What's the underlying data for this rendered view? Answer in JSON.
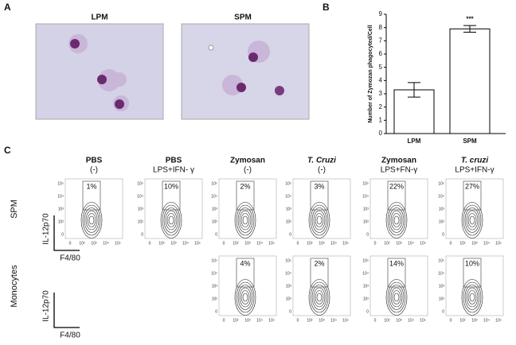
{
  "panel_a": {
    "label": "A",
    "images": [
      {
        "title": "LPM"
      },
      {
        "title": "SPM"
      }
    ]
  },
  "chart_data": {
    "type": "bar",
    "label": "B",
    "ylabel": "Number of Zymozan phagocyted/Cell",
    "categories": [
      "LPM",
      "SPM"
    ],
    "values": [
      3.3,
      7.9
    ],
    "errors": [
      0.55,
      0.25
    ],
    "value_labels": [
      null,
      "***"
    ],
    "color": "#ffffff",
    "ylim": [
      0,
      9
    ],
    "yticks": [
      0,
      1,
      2,
      3,
      4,
      5,
      6,
      7,
      8,
      9
    ]
  },
  "panel_c": {
    "label": "C",
    "columns": [
      {
        "name": "PBS",
        "condition": "(-)"
      },
      {
        "name": "PBS",
        "condition": "LPS+IFN- γ"
      },
      {
        "name": "Zymosan",
        "condition": "(-)"
      },
      {
        "name": "T. Cruzi",
        "condition": "(-)"
      },
      {
        "name": "Zymosan",
        "condition": "LPS+FN-γ"
      },
      {
        "name": "T. cruzi",
        "condition": "LPS+IFN-γ"
      }
    ],
    "rows": [
      {
        "name": "SPM",
        "percentages": [
          "1%",
          "10%",
          "2%",
          "3%",
          "22%",
          "27%"
        ]
      },
      {
        "name": "Monocytes",
        "percentages": [
          null,
          null,
          "4%",
          "2%",
          "14%",
          "10%"
        ]
      }
    ],
    "x_ticks": [
      "0",
      "10²",
      "10³",
      "10⁴",
      "10⁵"
    ],
    "y_ticks": [
      "10⁵",
      "10⁴",
      "10³",
      "10²",
      "0"
    ],
    "y_axis": "IL-12p70",
    "x_axis": "F4/80"
  }
}
